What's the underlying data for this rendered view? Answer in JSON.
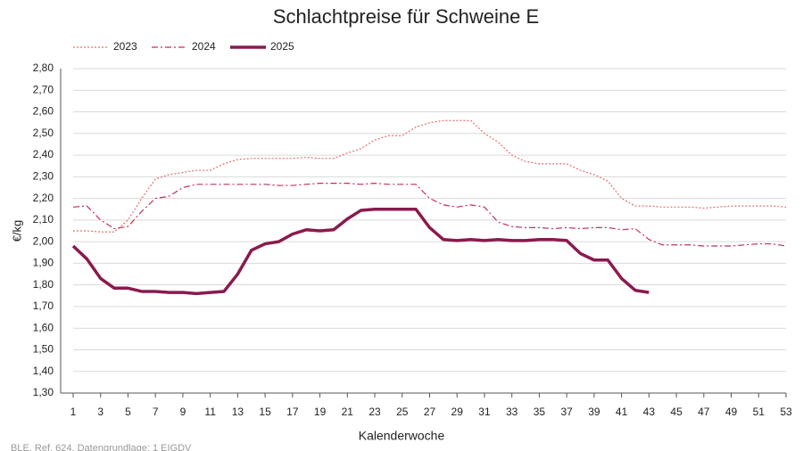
{
  "chart_data": {
    "type": "line",
    "title": "Schlachtpreise für Schweine E",
    "x_label": "Kalenderwoche",
    "y_label": "€/kg",
    "source": "BLE, Ref. 624, Datengrundlage: 1 EIGDV",
    "x": [
      1,
      2,
      3,
      4,
      5,
      6,
      7,
      8,
      9,
      10,
      11,
      12,
      13,
      14,
      15,
      16,
      17,
      18,
      19,
      20,
      21,
      22,
      23,
      24,
      25,
      26,
      27,
      28,
      29,
      30,
      31,
      32,
      33,
      34,
      35,
      36,
      37,
      38,
      39,
      40,
      41,
      42,
      43,
      44,
      45,
      46,
      47,
      48,
      49,
      50,
      51,
      52,
      53
    ],
    "xlim": [
      1,
      53
    ],
    "xticks": [
      1,
      3,
      5,
      7,
      9,
      11,
      13,
      15,
      17,
      19,
      21,
      23,
      25,
      27,
      29,
      31,
      33,
      35,
      37,
      39,
      41,
      43,
      45,
      47,
      49,
      51,
      53
    ],
    "ylim": [
      1.3,
      2.8
    ],
    "yticks": [
      {
        "value": 1.3,
        "label": "1,30"
      },
      {
        "value": 1.4,
        "label": "1,40"
      },
      {
        "value": 1.5,
        "label": "1,50"
      },
      {
        "value": 1.6,
        "label": "1,60"
      },
      {
        "value": 1.7,
        "label": "1,70"
      },
      {
        "value": 1.8,
        "label": "1,80"
      },
      {
        "value": 1.9,
        "label": "1,90"
      },
      {
        "value": 2.0,
        "label": "2,00"
      },
      {
        "value": 2.1,
        "label": "2,10"
      },
      {
        "value": 2.2,
        "label": "2,20"
      },
      {
        "value": 2.3,
        "label": "2,30"
      },
      {
        "value": 2.4,
        "label": "2,40"
      },
      {
        "value": 2.5,
        "label": "2,50"
      },
      {
        "value": 2.6,
        "label": "2,60"
      },
      {
        "value": 2.7,
        "label": "2,70"
      },
      {
        "value": 2.8,
        "label": "2,80"
      }
    ],
    "grid": true,
    "legend": "top-left",
    "series": [
      {
        "name": "2023",
        "color": "#e2706c",
        "style": "dotted",
        "line_width": 1.2,
        "values": [
          2.05,
          2.05,
          2.045,
          2.045,
          2.1,
          2.2,
          2.29,
          2.31,
          2.32,
          2.33,
          2.33,
          2.36,
          2.38,
          2.385,
          2.385,
          2.385,
          2.385,
          2.39,
          2.385,
          2.385,
          2.41,
          2.43,
          2.47,
          2.49,
          2.49,
          2.53,
          2.55,
          2.56,
          2.56,
          2.56,
          2.5,
          2.46,
          2.4,
          2.37,
          2.36,
          2.36,
          2.36,
          2.33,
          2.31,
          2.28,
          2.2,
          2.165,
          2.165,
          2.16,
          2.16,
          2.16,
          2.155,
          2.16,
          2.165,
          2.165,
          2.165,
          2.165,
          2.16
        ]
      },
      {
        "name": "2024",
        "color": "#c0325a",
        "style": "dashdot",
        "line_width": 1.2,
        "values": [
          2.16,
          2.165,
          2.1,
          2.06,
          2.07,
          2.14,
          2.2,
          2.21,
          2.25,
          2.265,
          2.265,
          2.265,
          2.265,
          2.265,
          2.265,
          2.26,
          2.26,
          2.265,
          2.27,
          2.27,
          2.27,
          2.265,
          2.27,
          2.265,
          2.265,
          2.265,
          2.2,
          2.17,
          2.16,
          2.17,
          2.16,
          2.09,
          2.07,
          2.065,
          2.065,
          2.06,
          2.065,
          2.06,
          2.065,
          2.065,
          2.055,
          2.06,
          2.01,
          1.985,
          1.985,
          1.985,
          1.98,
          1.98,
          1.98,
          1.985,
          1.99,
          1.99,
          1.98
        ]
      },
      {
        "name": "2025",
        "color": "#8a1a4e",
        "style": "solid",
        "line_width": 3.5,
        "values": [
          1.98,
          1.92,
          1.83,
          1.785,
          1.785,
          1.77,
          1.77,
          1.765,
          1.765,
          1.76,
          1.765,
          1.77,
          1.85,
          1.96,
          1.99,
          2.0,
          2.035,
          2.055,
          2.05,
          2.055,
          2.105,
          2.145,
          2.15,
          2.15,
          2.15,
          2.15,
          2.065,
          2.01,
          2.005,
          2.01,
          2.005,
          2.01,
          2.005,
          2.005,
          2.01,
          2.01,
          2.005,
          1.945,
          1.915,
          1.915,
          1.83,
          1.775,
          1.765,
          null,
          null,
          null,
          null,
          null,
          null,
          null,
          null,
          null,
          null
        ]
      }
    ]
  }
}
